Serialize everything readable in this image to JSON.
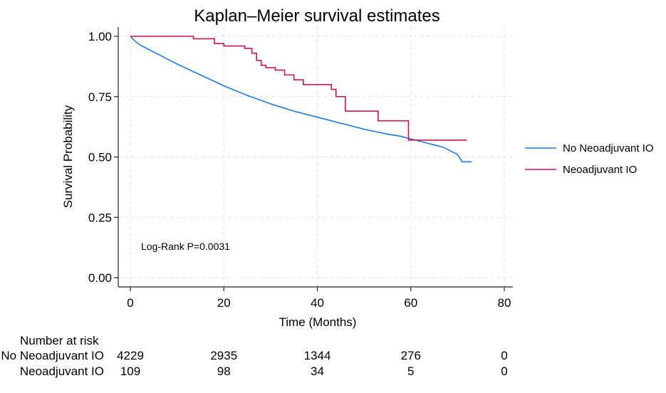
{
  "chart_data": {
    "type": "line",
    "title": "Kaplan–Meier survival estimates",
    "xlabel": "Time (Months)",
    "ylabel": "Survival Probability",
    "xlim": [
      0,
      80
    ],
    "ylim": [
      0,
      1
    ],
    "x_ticks": [
      "0",
      "20",
      "40",
      "60",
      "80"
    ],
    "x_tick_values": [
      0,
      20,
      40,
      60,
      80
    ],
    "y_ticks": [
      "0.00",
      "0.25",
      "0.50",
      "0.75",
      "1.00"
    ],
    "y_tick_values": [
      0,
      0.25,
      0.5,
      0.75,
      1.0
    ],
    "grid": true,
    "legend_position": "right",
    "annotation": "Log-Rank P=0.0031",
    "series": [
      {
        "name": "No Neoadjuvant IO",
        "color": "#1f7ae0",
        "x": [
          0,
          0.5,
          1,
          2,
          3,
          5,
          8,
          10,
          15,
          20,
          25,
          30,
          35,
          40,
          45,
          50,
          55,
          58,
          60,
          61,
          62,
          63,
          64,
          65,
          66,
          67,
          68,
          69,
          70,
          71,
          72,
          73
        ],
        "y": [
          1.0,
          0.99,
          0.98,
          0.965,
          0.955,
          0.935,
          0.905,
          0.885,
          0.84,
          0.795,
          0.755,
          0.72,
          0.69,
          0.665,
          0.64,
          0.615,
          0.595,
          0.585,
          0.575,
          0.57,
          0.565,
          0.56,
          0.555,
          0.55,
          0.545,
          0.54,
          0.53,
          0.52,
          0.51,
          0.48,
          0.48,
          0.48
        ],
        "step": false
      },
      {
        "name": "Neoadjuvant IO",
        "color": "#c8174f",
        "x": [
          0,
          13.5,
          18,
          20,
          24.5,
          26,
          27,
          28,
          29,
          31,
          33,
          35,
          37,
          43,
          44,
          46,
          53,
          59.5,
          72
        ],
        "y": [
          1.0,
          0.99,
          0.97,
          0.96,
          0.95,
          0.93,
          0.9,
          0.88,
          0.87,
          0.86,
          0.84,
          0.82,
          0.8,
          0.78,
          0.75,
          0.69,
          0.65,
          0.57,
          0.57
        ],
        "step": true
      }
    ],
    "risk_table": {
      "title": "Number at risk",
      "times": [
        0,
        20,
        40,
        60,
        80
      ],
      "rows": [
        {
          "label": "No Neoadjuvant IO",
          "values": [
            "4229",
            "2935",
            "1344",
            "276",
            "0"
          ]
        },
        {
          "label": "Neoadjuvant IO",
          "values": [
            "109",
            "98",
            "34",
            "5",
            "0"
          ]
        }
      ]
    }
  }
}
